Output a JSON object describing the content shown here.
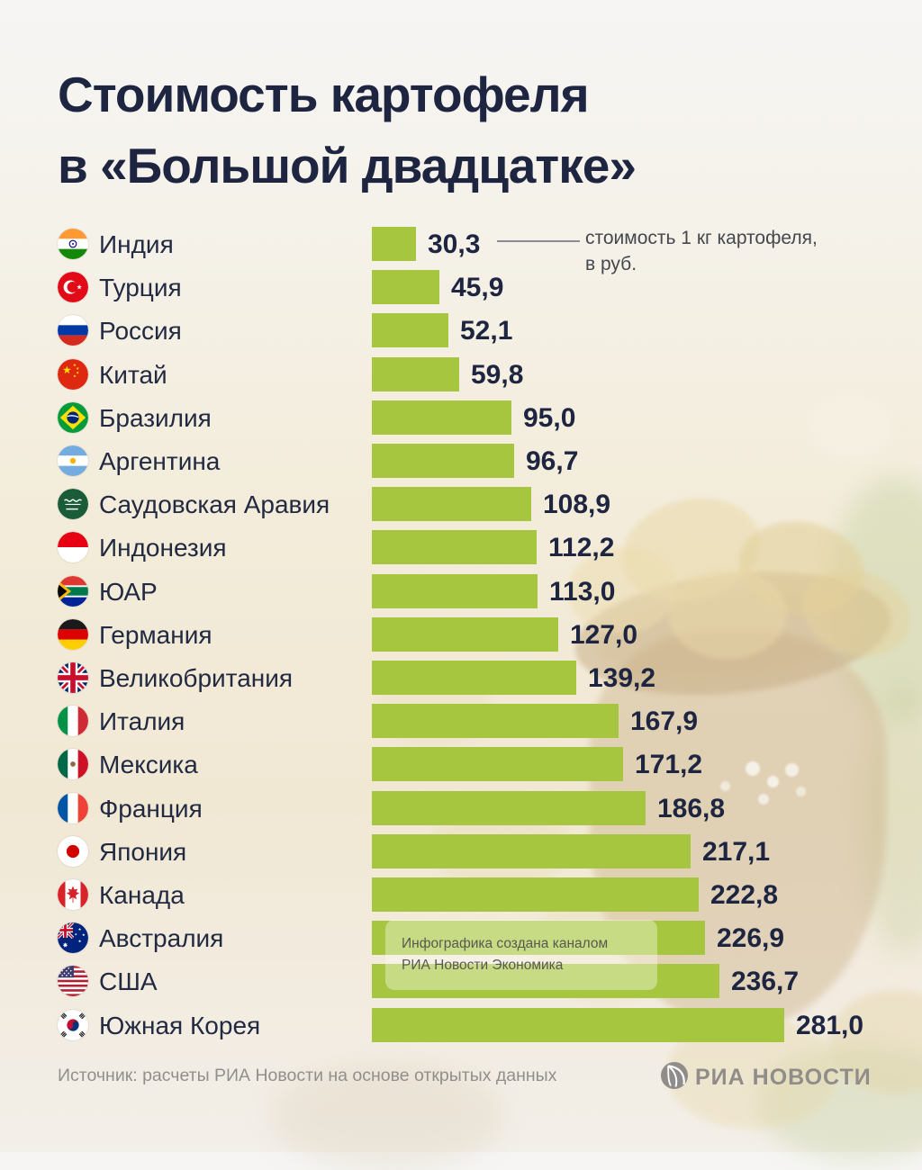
{
  "title": {
    "line1": "Стоимость картофеля",
    "line2": "в «Большой двадцатке»"
  },
  "annotation": {
    "line1": "стоимость 1 кг картофеля,",
    "line2": "в руб."
  },
  "watermark": {
    "line1": "Инфографика создана каналом",
    "line2": "РИА Новости Экономика"
  },
  "footer": {
    "source": "Источник: расчеты РИА Новости на основе открытых данных",
    "logo_text": "РИА НОВОСТИ"
  },
  "colors": {
    "bar_green": "#a7c640",
    "title_navy": "#1e2540",
    "annotation_gray": "#44474f",
    "footer_gray": "#8f8d8b",
    "watermark_text": "#585950"
  },
  "chart_data": {
    "type": "bar",
    "orientation": "horizontal",
    "title": "Стоимость картофеля в «Большой двадцатке»",
    "unit_note": "стоимость 1 кг картофеля, в руб.",
    "xlim": [
      0,
      281
    ],
    "grid": false,
    "categories": [
      "Индия",
      "Турция",
      "Россия",
      "Китай",
      "Бразилия",
      "Аргентина",
      "Саудовская Аравия",
      "Индонезия",
      "ЮАР",
      "Германия",
      "Великобритания",
      "Италия",
      "Мексика",
      "Франция",
      "Япония",
      "Канада",
      "Австралия",
      "США",
      "Южная Корея"
    ],
    "values": [
      30.3,
      45.9,
      52.1,
      59.8,
      95.0,
      96.7,
      108.9,
      112.2,
      113.0,
      127.0,
      139.2,
      167.9,
      171.2,
      186.8,
      217.1,
      222.8,
      226.9,
      236.7,
      281.0
    ],
    "value_labels": [
      "30,3",
      "45,9",
      "52,1",
      "59,8",
      "95,0",
      "96,7",
      "108,9",
      "112,2",
      "113,0",
      "127,0",
      "139,2",
      "167,9",
      "171,2",
      "186,8",
      "217,1",
      "222,8",
      "226,9",
      "236,7",
      "281,0"
    ],
    "flags": [
      "india",
      "turkey",
      "russia",
      "china",
      "brazil",
      "argentina",
      "saudi-arabia",
      "indonesia",
      "south-africa",
      "germany",
      "uk",
      "italy",
      "mexico",
      "france",
      "japan",
      "canada",
      "australia",
      "usa",
      "south-korea"
    ]
  }
}
